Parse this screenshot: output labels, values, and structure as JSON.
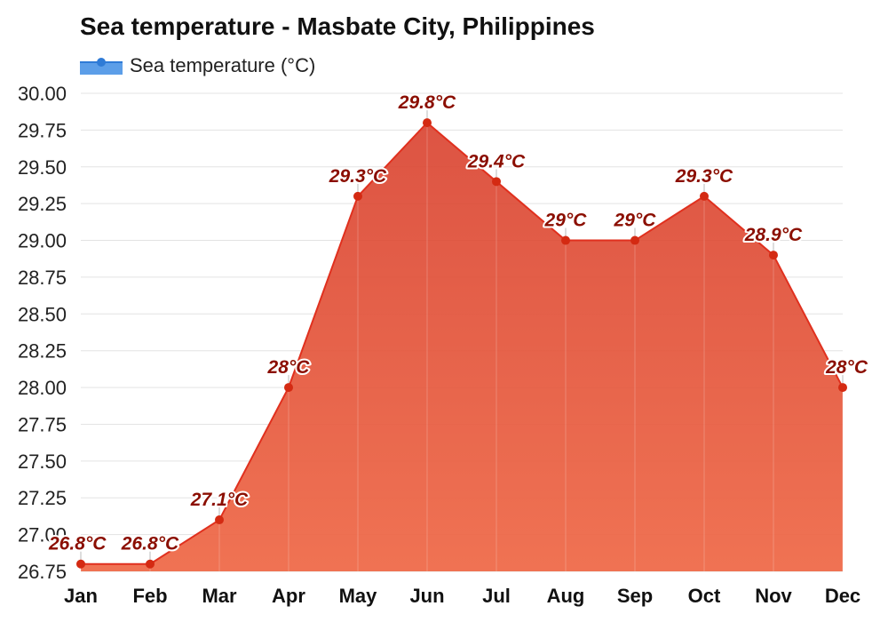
{
  "chart_data": {
    "type": "area",
    "title": "Sea temperature - Masbate City, Philippines",
    "categories": [
      "Jan",
      "Feb",
      "Mar",
      "Apr",
      "May",
      "Jun",
      "Jul",
      "Aug",
      "Sep",
      "Oct",
      "Nov",
      "Dec"
    ],
    "series": [
      {
        "name": "Sea temperature (°C)",
        "values": [
          26.8,
          26.8,
          27.1,
          28.0,
          29.3,
          29.8,
          29.4,
          29.0,
          29.0,
          29.3,
          28.9,
          28.0
        ],
        "data_labels": [
          "26.8°C",
          "26.8°C",
          "27.1°C",
          "28°C",
          "29.3°C",
          "29.8°C",
          "29.4°C",
          "29°C",
          "29°C",
          "29.3°C",
          "28.9°C",
          "28°C"
        ]
      }
    ],
    "ylim": [
      26.75,
      30.0
    ],
    "yticks": [
      "30.00",
      "29.75",
      "29.50",
      "29.25",
      "29.00",
      "28.75",
      "28.50",
      "28.25",
      "28.00",
      "27.75",
      "27.50",
      "27.25",
      "27.00",
      "26.75"
    ],
    "grid": true,
    "legend": "top-left",
    "colors": {
      "line": "#e0301e",
      "fill_top": "#d9412e",
      "fill_bottom": "#ef6b4a",
      "point": "#d42a12",
      "label": "#8b0e00",
      "legend_swatch": "#3f8ae0"
    }
  }
}
